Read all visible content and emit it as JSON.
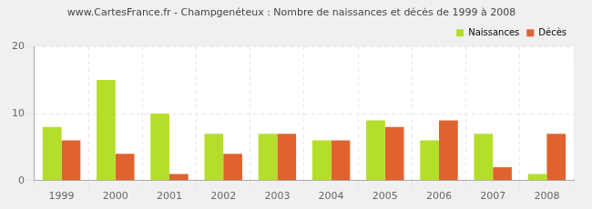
{
  "chart_data": {
    "type": "bar",
    "title": "www.CartesFrance.fr - Champgenéteux : Nombre de naissances et décès de 1999 à 2008",
    "categories": [
      "1999",
      "2000",
      "2001",
      "2002",
      "2003",
      "2004",
      "2005",
      "2006",
      "2007",
      "2008"
    ],
    "series": [
      {
        "name": "Naissances",
        "color": "#b5de2b",
        "values": [
          8,
          15,
          10,
          7,
          7,
          6,
          9,
          6,
          7,
          1
        ]
      },
      {
        "name": "Décès",
        "color": "#e0622f",
        "values": [
          6,
          4,
          1,
          4,
          7,
          6,
          8,
          9,
          2,
          7
        ]
      }
    ],
    "ylim": [
      0,
      20
    ],
    "yticks": [
      0,
      10,
      20
    ],
    "grid": true,
    "legend": "upper right"
  }
}
